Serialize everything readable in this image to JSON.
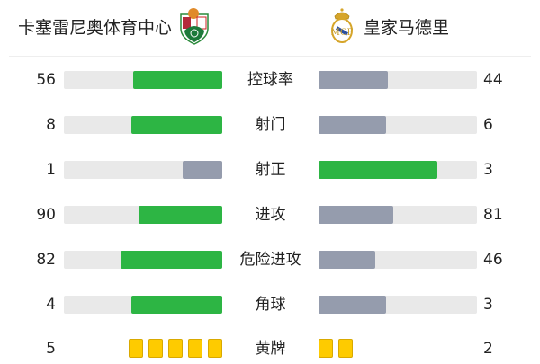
{
  "home": {
    "name": "卡塞雷尼奥体育中心",
    "logo": "cd-extremadura-crest"
  },
  "away": {
    "name": "皇家马德里",
    "logo": "real-madrid-crest"
  },
  "colors": {
    "winner": "#2db544",
    "loser": "#959cad",
    "track": "#e9e9e9",
    "card": "#fecb00"
  },
  "stats": [
    {
      "label": "控球率",
      "home": "56",
      "away": "44"
    },
    {
      "label": "射门",
      "home": "8",
      "away": "6"
    },
    {
      "label": "射正",
      "home": "1",
      "away": "3"
    },
    {
      "label": "进攻",
      "home": "90",
      "away": "81"
    },
    {
      "label": "危险进攻",
      "home": "82",
      "away": "46"
    },
    {
      "label": "角球",
      "home": "4",
      "away": "3"
    }
  ],
  "yellow_cards": {
    "label": "黄牌",
    "home": "5",
    "away": "2"
  }
}
